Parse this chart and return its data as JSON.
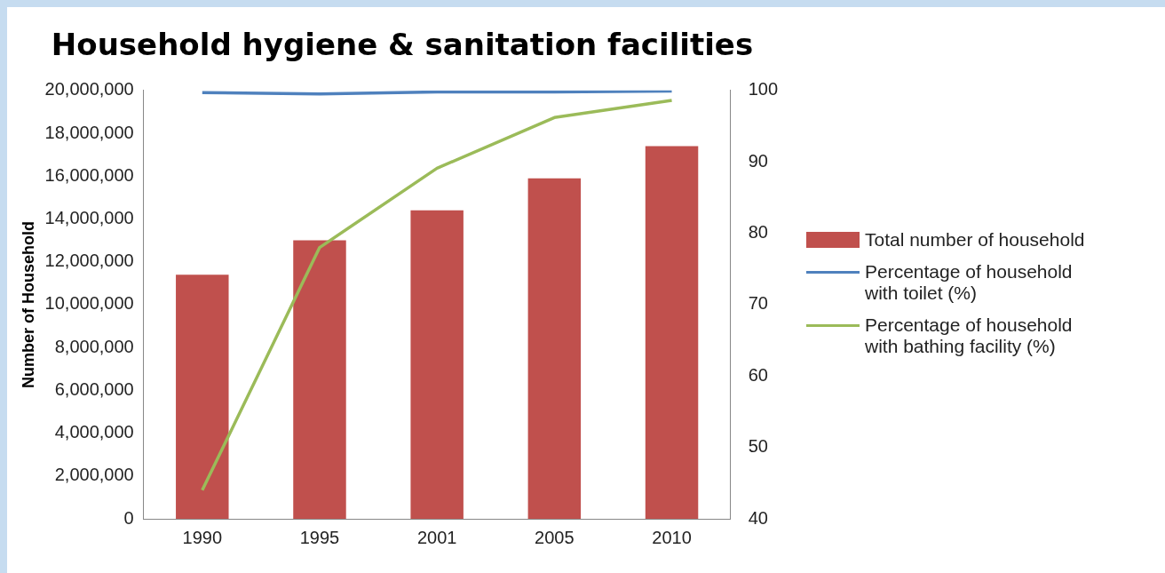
{
  "chart_data": {
    "type": "bar",
    "title": "Household hygiene & sanitation facilities",
    "ylabel": "Number of Household",
    "categories": [
      "1990",
      "1995",
      "2001",
      "2005",
      "2010"
    ],
    "series": [
      {
        "name": "Total number of household",
        "color": "#c0504d",
        "values": [
          11400000,
          13000000,
          14400000,
          15900000,
          17400000
        ]
      },
      {
        "name": "Percentage of household with toilet  (%)",
        "type": "line",
        "axis": "y2",
        "color": "#4f81bd",
        "values": [
          99.7,
          99.5,
          99.8,
          99.8,
          99.9
        ]
      },
      {
        "name": "Percentage of household with bathing facility (%)",
        "type": "line",
        "axis": "y2",
        "color": "#9bbb59",
        "values": [
          44,
          78,
          89.1,
          96.2,
          98.6
        ]
      }
    ],
    "ylim": [
      0,
      20000000
    ],
    "yticks": [
      0,
      {
        "value": 2000000,
        "label": "2,000,000"
      },
      {
        "value": 4000000,
        "label": "4,000,000"
      },
      {
        "value": 6000000,
        "label": "6,000,000"
      },
      {
        "value": 8000000,
        "label": "8,000,000"
      },
      {
        "value": 10000000,
        "label": "10,000,000"
      },
      {
        "value": 12000000,
        "label": "12,000,000"
      },
      {
        "value": 14000000,
        "label": "14,000,000"
      },
      {
        "value": 16000000,
        "label": "16,000,000"
      },
      {
        "value": 18000000,
        "label": "18,000,000"
      },
      {
        "value": 20000000,
        "label": "20,000,000"
      }
    ],
    "y2lim": [
      40,
      100
    ],
    "y2ticks": [
      40,
      50,
      60,
      70,
      80,
      90,
      100
    ],
    "grid": false,
    "legend": "right",
    "marker": "none"
  }
}
